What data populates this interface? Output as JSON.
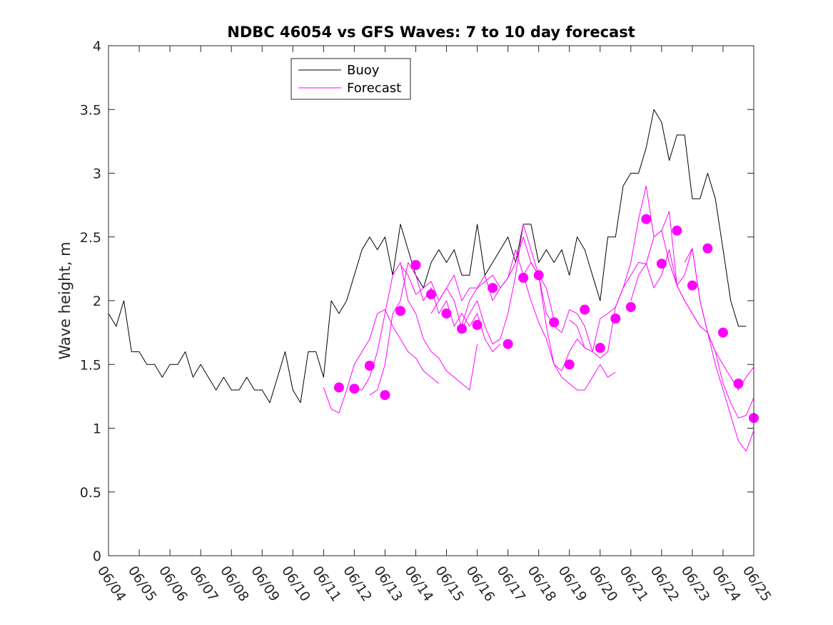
{
  "chart_data": {
    "type": "line",
    "title": "NDBC 46054 vs GFS Waves: 7 to 10 day forecast",
    "xlabel": "",
    "ylabel": "Wave height, m",
    "ylim": [
      0,
      4
    ],
    "yticks": [
      "0",
      "0.5",
      "1",
      "1.5",
      "2",
      "2.5",
      "3",
      "3.5",
      "4"
    ],
    "xlim": [
      "06/04",
      "06/25"
    ],
    "xticks": [
      "06/04",
      "06/05",
      "06/06",
      "06/07",
      "06/08",
      "06/09",
      "06/10",
      "06/11",
      "06/12",
      "06/13",
      "06/14",
      "06/15",
      "06/16",
      "06/17",
      "06/18",
      "06/19",
      "06/20",
      "06/21",
      "06/22",
      "06/23",
      "06/24",
      "06/25"
    ],
    "grid": false,
    "legend": "top-center",
    "colors": {
      "buoy": "#000000",
      "forecast": "#ff00ff"
    },
    "series": [
      {
        "name": "Buoy",
        "x": [
          "06/04 00:00",
          "06/04 06:00",
          "06/04 12:00",
          "06/04 18:00",
          "06/05 00:00",
          "06/05 06:00",
          "06/05 12:00",
          "06/05 18:00",
          "06/06 00:00",
          "06/06 06:00",
          "06/06 12:00",
          "06/06 18:00",
          "06/07 00:00",
          "06/07 06:00",
          "06/07 12:00",
          "06/07 18:00",
          "06/08 00:00",
          "06/08 06:00",
          "06/08 12:00",
          "06/08 18:00",
          "06/09 00:00",
          "06/09 06:00",
          "06/09 12:00",
          "06/09 18:00",
          "06/10 00:00",
          "06/10 06:00",
          "06/10 12:00",
          "06/10 18:00",
          "06/11 00:00",
          "06/11 06:00",
          "06/11 12:00",
          "06/11 18:00",
          "06/12 00:00",
          "06/12 06:00",
          "06/12 12:00",
          "06/12 18:00",
          "06/13 00:00",
          "06/13 06:00",
          "06/13 12:00",
          "06/13 18:00",
          "06/14 00:00",
          "06/14 06:00",
          "06/14 12:00",
          "06/14 18:00",
          "06/15 00:00",
          "06/15 06:00",
          "06/15 12:00",
          "06/15 18:00",
          "06/16 00:00",
          "06/16 06:00",
          "06/16 12:00",
          "06/16 18:00",
          "06/17 00:00",
          "06/17 06:00",
          "06/17 12:00",
          "06/17 18:00",
          "06/18 00:00",
          "06/18 06:00",
          "06/18 12:00",
          "06/18 18:00",
          "06/19 00:00",
          "06/19 06:00",
          "06/19 12:00",
          "06/19 18:00",
          "06/20 00:00",
          "06/20 06:00",
          "06/20 12:00",
          "06/20 18:00",
          "06/21 00:00",
          "06/21 06:00",
          "06/21 12:00",
          "06/21 18:00",
          "06/22 00:00",
          "06/22 06:00",
          "06/22 12:00",
          "06/22 18:00",
          "06/23 00:00",
          "06/23 06:00",
          "06/23 12:00",
          "06/23 18:00",
          "06/24 00:00",
          "06/24 06:00",
          "06/24 12:00",
          "06/24 18:00"
        ],
        "values": [
          1.9,
          1.8,
          2.0,
          1.6,
          1.6,
          1.5,
          1.5,
          1.4,
          1.5,
          1.5,
          1.6,
          1.4,
          1.5,
          1.4,
          1.3,
          1.4,
          1.3,
          1.3,
          1.4,
          1.3,
          1.3,
          1.2,
          1.4,
          1.6,
          1.3,
          1.2,
          1.6,
          1.6,
          1.4,
          2.0,
          1.9,
          2.0,
          2.2,
          2.4,
          2.5,
          2.4,
          2.5,
          2.2,
          2.6,
          2.4,
          2.2,
          2.1,
          2.3,
          2.4,
          2.3,
          2.4,
          2.2,
          2.2,
          2.6,
          2.2,
          2.3,
          2.4,
          2.5,
          2.3,
          2.6,
          2.6,
          2.3,
          2.4,
          2.3,
          2.4,
          2.2,
          2.5,
          2.4,
          2.2,
          2.0,
          2.5,
          2.5,
          2.9,
          3.0,
          3.0,
          3.2,
          3.5,
          3.4,
          3.1,
          3.3,
          3.3,
          2.8,
          2.8,
          3.0,
          2.8,
          2.4,
          2.0,
          1.8,
          1.8
        ]
      },
      {
        "name": "Forecast",
        "x": [
          "06/11 00:00",
          "06/11 06:00",
          "06/11 12:00",
          "06/11 18:00",
          "06/12 00:00",
          "06/12 06:00",
          "06/12 12:00",
          "06/12 18:00",
          "06/13 00:00",
          "06/13 06:00",
          "06/13 12:00",
          "06/13 18:00",
          "06/14 00:00",
          "06/14 06:00",
          "06/14 12:00",
          "06/14 18:00"
        ],
        "values": [
          1.32,
          1.15,
          1.12,
          1.3,
          1.5,
          1.6,
          1.7,
          1.9,
          1.93,
          1.8,
          1.7,
          1.6,
          1.55,
          1.45,
          1.4,
          1.35
        ]
      },
      {
        "name": "",
        "x": [
          "06/12 00:00",
          "06/12 06:00",
          "06/12 12:00",
          "06/12 18:00",
          "06/13 00:00",
          "06/13 06:00",
          "06/13 12:00",
          "06/13 18:00",
          "06/14 00:00",
          "06/14 06:00",
          "06/14 12:00",
          "06/14 18:00",
          "06/15 00:00",
          "06/15 06:00",
          "06/15 12:00",
          "06/15 18:00",
          "06/16 00:00"
        ],
        "values": [
          1.31,
          1.3,
          1.4,
          1.6,
          1.9,
          2.2,
          2.3,
          2.0,
          1.9,
          1.7,
          1.6,
          1.55,
          1.45,
          1.4,
          1.35,
          1.3,
          1.66
        ]
      },
      {
        "name": "",
        "x": [
          "06/12 12:00",
          "06/12 18:00",
          "06/13 00:00",
          "06/13 06:00",
          "06/13 12:00",
          "06/13 18:00",
          "06/14 00:00",
          "06/14 06:00",
          "06/14 12:00",
          "06/14 18:00",
          "06/15 00:00",
          "06/15 06:00",
          "06/15 12:00",
          "06/15 18:00",
          "06/16 00:00",
          "06/16 06:00",
          "06/16 12:00",
          "06/16 18:00"
        ],
        "values": [
          1.26,
          1.3,
          1.5,
          1.9,
          2.0,
          2.3,
          2.2,
          2.0,
          2.1,
          1.9,
          2.0,
          1.8,
          1.9,
          1.8,
          1.9,
          1.7,
          1.6,
          1.66
        ]
      },
      {
        "name": "",
        "x": [
          "06/13 12:00",
          "06/13 18:00",
          "06/14 00:00",
          "06/14 06:00",
          "06/14 12:00",
          "06/14 18:00",
          "06/15 00:00",
          "06/15 06:00",
          "06/15 12:00",
          "06/15 18:00",
          "06/16 00:00",
          "06/16 06:00",
          "06/16 12:00",
          "06/16 18:00",
          "06/17 00:00",
          "06/17 06:00",
          "06/17 12:00",
          "06/17 18:00",
          "06/18 00:00",
          "06/18 06:00",
          "06/18 12:00"
        ],
        "values": [
          2.28,
          2.2,
          2.05,
          2.1,
          2.15,
          2.0,
          2.1,
          2.2,
          2.0,
          2.1,
          2.1,
          2.15,
          2.2,
          2.1,
          2.18,
          2.3,
          2.5,
          2.3,
          2.2,
          2.1,
          1.85
        ]
      },
      {
        "name": "",
        "x": [
          "06/14 12:00",
          "06/14 18:00",
          "06/15 00:00",
          "06/15 06:00",
          "06/15 12:00",
          "06/15 18:00",
          "06/16 00:00",
          "06/16 06:00",
          "06/16 12:00",
          "06/16 18:00",
          "06/17 00:00",
          "06/17 06:00",
          "06/17 12:00",
          "06/17 18:00",
          "06/18 00:00",
          "06/18 06:00",
          "06/18 12:00",
          "06/18 18:00",
          "06/19 00:00",
          "06/19 06:00",
          "06/19 12:00"
        ],
        "values": [
          1.9,
          2.0,
          2.1,
          2.0,
          1.78,
          1.9,
          2.0,
          1.8,
          1.66,
          1.7,
          1.9,
          2.2,
          2.6,
          2.4,
          2.2,
          1.8,
          1.5,
          1.45,
          1.6,
          1.7,
          1.63
        ]
      },
      {
        "name": "",
        "x": [
          "06/15 12:00",
          "06/15 18:00",
          "06/16 00:00",
          "06/16 06:00",
          "06/16 12:00",
          "06/16 18:00",
          "06/17 00:00",
          "06/17 06:00",
          "06/17 12:00",
          "06/17 18:00",
          "06/18 00:00",
          "06/18 06:00",
          "06/18 12:00",
          "06/18 18:00",
          "06/19 00:00",
          "06/19 06:00",
          "06/19 12:00",
          "06/19 18:00",
          "06/20 00:00",
          "06/20 06:00",
          "06/20 12:00"
        ],
        "values": [
          1.81,
          2.0,
          2.1,
          2.2,
          2.0,
          2.1,
          2.18,
          2.4,
          2.2,
          2.0,
          1.83,
          1.7,
          1.5,
          1.4,
          1.35,
          1.3,
          1.3,
          1.4,
          1.5,
          1.4,
          1.44
        ]
      },
      {
        "name": "",
        "x": [
          "06/17 12:00",
          "06/17 18:00",
          "06/18 00:00",
          "06/18 06:00",
          "06/18 12:00",
          "06/18 18:00",
          "06/19 00:00",
          "06/19 06:00",
          "06/19 12:00",
          "06/19 18:00",
          "06/20 00:00",
          "06/20 06:00",
          "06/20 12:00",
          "06/20 18:00",
          "06/21 00:00",
          "06/21 06:00",
          "06/21 12:00",
          "06/21 18:00",
          "06/22 00:00"
        ],
        "values": [
          2.2,
          2.3,
          2.2,
          1.9,
          1.8,
          1.75,
          1.93,
          1.9,
          1.8,
          1.6,
          1.55,
          1.6,
          1.95,
          2.1,
          2.3,
          2.64,
          2.9,
          2.5,
          2.55
        ]
      },
      {
        "name": "",
        "x": [
          "06/19 00:00",
          "06/19 06:00",
          "06/19 12:00",
          "06/19 18:00",
          "06/20 00:00",
          "06/20 06:00",
          "06/20 12:00",
          "06/20 18:00",
          "06/21 00:00",
          "06/21 06:00",
          "06/21 12:00",
          "06/21 18:00",
          "06/22 00:00",
          "06/22 06:00",
          "06/22 12:00",
          "06/22 18:00",
          "06/23 00:00",
          "06/23 06:00",
          "06/23 12:00"
        ],
        "values": [
          1.85,
          1.8,
          1.63,
          1.6,
          1.86,
          1.9,
          1.95,
          2.1,
          2.2,
          2.3,
          2.29,
          2.5,
          2.55,
          2.7,
          2.12,
          2.0,
          1.9,
          1.8,
          1.75
        ]
      },
      {
        "name": "",
        "x": [
          "06/21 00:00",
          "06/21 06:00",
          "06/21 12:00",
          "06/21 18:00",
          "06/22 00:00",
          "06/22 06:00",
          "06/22 12:00",
          "06/22 18:00",
          "06/23 00:00",
          "06/23 06:00",
          "06/23 12:00",
          "06/23 18:00",
          "06/24 00:00",
          "06/24 06:00",
          "06/24 12:00",
          "06/24 18:00",
          "06/25 00:00"
        ],
        "values": [
          2.0,
          2.2,
          2.29,
          2.1,
          2.2,
          2.4,
          2.12,
          2.2,
          2.41,
          2.0,
          1.75,
          1.6,
          1.35,
          1.2,
          1.08,
          1.1,
          1.24
        ]
      },
      {
        "name": "",
        "x": [
          "06/22 00:00",
          "06/22 06:00",
          "06/22 12:00",
          "06/22 18:00",
          "06/23 00:00",
          "06/23 06:00",
          "06/23 12:00",
          "06/23 18:00",
          "06/24 00:00",
          "06/24 06:00",
          "06/24 12:00",
          "06/24 18:00",
          "06/25 00:00"
        ],
        "values": [
          2.55,
          2.3,
          2.12,
          2.0,
          1.9,
          1.8,
          1.75,
          1.6,
          1.5,
          1.4,
          1.3,
          1.4,
          1.48
        ]
      },
      {
        "name": "",
        "x": [
          "06/22 18:00",
          "06/23 00:00",
          "06/23 06:00",
          "06/23 12:00",
          "06/23 18:00",
          "06/24 00:00",
          "06/24 06:00",
          "06/24 12:00",
          "06/24 18:00",
          "06/25 00:00"
        ],
        "values": [
          2.3,
          2.41,
          2.0,
          1.75,
          1.5,
          1.3,
          1.1,
          0.9,
          0.82,
          0.98
        ]
      }
    ],
    "markers": {
      "x": [
        "06/11 12:00",
        "06/12 00:00",
        "06/12 12:00",
        "06/13 00:00",
        "06/13 12:00",
        "06/14 00:00",
        "06/14 12:00",
        "06/15 00:00",
        "06/15 12:00",
        "06/16 00:00",
        "06/16 12:00",
        "06/17 00:00",
        "06/17 12:00",
        "06/18 00:00",
        "06/18 12:00",
        "06/19 00:00",
        "06/19 12:00",
        "06/20 00:00",
        "06/20 12:00",
        "06/21 00:00",
        "06/21 12:00",
        "06/22 00:00",
        "06/22 12:00",
        "06/23 00:00",
        "06/23 12:00",
        "06/24 00:00",
        "06/24 12:00",
        "06/25 00:00"
      ],
      "values": [
        1.32,
        1.31,
        1.49,
        1.26,
        1.92,
        2.28,
        2.05,
        1.9,
        1.78,
        1.81,
        2.1,
        1.66,
        2.18,
        2.2,
        1.83,
        1.5,
        1.93,
        1.63,
        1.86,
        1.95,
        2.64,
        2.29,
        2.55,
        2.12,
        2.41,
        1.75,
        1.35,
        1.08
      ]
    }
  }
}
